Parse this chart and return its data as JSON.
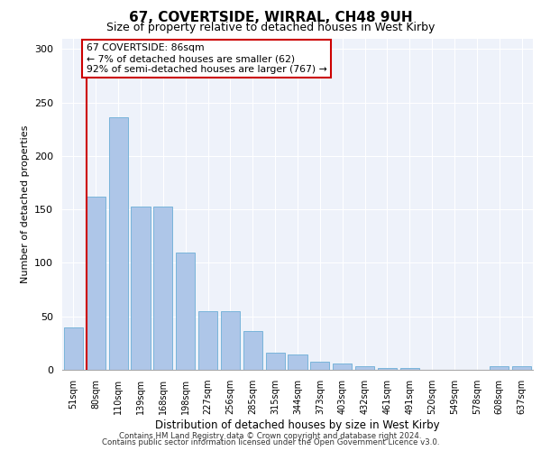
{
  "title1": "67, COVERTSIDE, WIRRAL, CH48 9UH",
  "title2": "Size of property relative to detached houses in West Kirby",
  "xlabel": "Distribution of detached houses by size in West Kirby",
  "ylabel": "Number of detached properties",
  "categories": [
    "51sqm",
    "80sqm",
    "110sqm",
    "139sqm",
    "168sqm",
    "198sqm",
    "227sqm",
    "256sqm",
    "285sqm",
    "315sqm",
    "344sqm",
    "373sqm",
    "403sqm",
    "432sqm",
    "461sqm",
    "491sqm",
    "520sqm",
    "549sqm",
    "578sqm",
    "608sqm",
    "637sqm"
  ],
  "values": [
    40,
    162,
    236,
    153,
    153,
    110,
    55,
    55,
    36,
    16,
    14,
    8,
    6,
    3,
    2,
    2,
    0,
    0,
    0,
    3,
    3
  ],
  "bar_color": "#aec6e8",
  "bar_edge_color": "#6baed6",
  "highlight_color": "#cc0000",
  "annotation_text": "67 COVERTSIDE: 86sqm\n← 7% of detached houses are smaller (62)\n92% of semi-detached houses are larger (767) →",
  "annotation_box_color": "#ffffff",
  "annotation_box_edge": "#cc0000",
  "ylim": [
    0,
    310
  ],
  "yticks": [
    0,
    50,
    100,
    150,
    200,
    250,
    300
  ],
  "footer1": "Contains HM Land Registry data © Crown copyright and database right 2024.",
  "footer2": "Contains public sector information licensed under the Open Government Licence v3.0.",
  "background_color": "#eef2fa"
}
